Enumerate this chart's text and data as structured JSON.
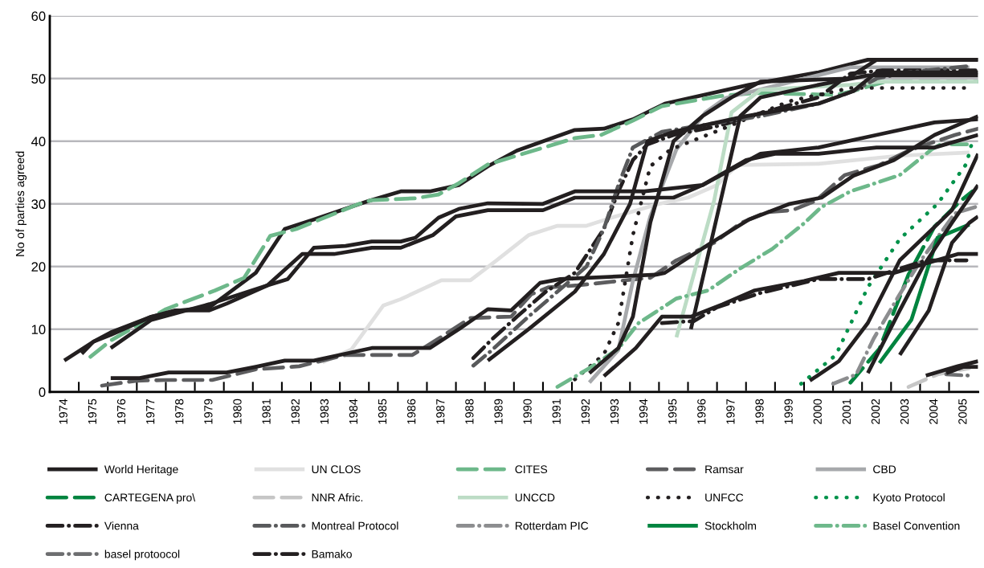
{
  "chart_data": {
    "type": "line",
    "ylabel": "No of parties agreed",
    "ylim": [
      0,
      60
    ],
    "yticks": [
      0,
      10,
      20,
      30,
      40,
      50,
      60
    ],
    "xlim": [
      1973.5,
      2005.5
    ],
    "xticks": [
      {
        "value": 1974,
        "label": "1974"
      },
      {
        "value": 1975,
        "label": "1975"
      },
      {
        "value": 1976,
        "label": "1976"
      },
      {
        "value": 1977,
        "label": "1977"
      },
      {
        "value": 1978,
        "label": "1978"
      },
      {
        "value": 1979,
        "label": "1979"
      },
      {
        "value": 1980,
        "label": "1980"
      },
      {
        "value": 1981,
        "label": "1981"
      },
      {
        "value": 1982,
        "label": "1982"
      },
      {
        "value": 1983,
        "label": "1983"
      },
      {
        "value": 1984,
        "label": "1984"
      },
      {
        "value": 1985,
        "label": "1985"
      },
      {
        "value": 1986,
        "label": "1986"
      },
      {
        "value": 1987,
        "label": "1987"
      },
      {
        "value": 1988,
        "label": "1988"
      },
      {
        "value": 1989,
        "label": "1989"
      },
      {
        "value": 1990,
        "label": "1990"
      },
      {
        "value": 1991,
        "label": "1991"
      },
      {
        "value": 1992,
        "label": "1992"
      },
      {
        "value": 1993,
        "label": "1993"
      },
      {
        "value": 1994,
        "label": "1994"
      },
      {
        "value": 1995,
        "label": "1995"
      },
      {
        "value": 1996,
        "label": "1996"
      },
      {
        "value": 1997,
        "label": "1997"
      },
      {
        "value": 1998,
        "label": "1998"
      },
      {
        "value": 1999,
        "label": "1999"
      },
      {
        "value": 2000,
        "label": "2000"
      },
      {
        "value": 2001,
        "label": "2001"
      },
      {
        "value": 2002,
        "label": "2002"
      },
      {
        "value": 2003,
        "label": "2003"
      },
      {
        "value": 2004,
        "label": "2004"
      },
      {
        "value": 2005,
        "label": "2005"
      },
      {
        "value": 1974.5,
        "label": null
      },
      {
        "value": 1975.5,
        "label": null
      },
      {
        "value": 1976.5,
        "label": null
      },
      {
        "value": 1977.5,
        "label": null
      },
      {
        "value": 1978.5,
        "label": null
      },
      {
        "value": 1979.5,
        "label": null
      },
      {
        "value": 1980.5,
        "label": null
      },
      {
        "value": 1981.5,
        "label": null
      },
      {
        "value": 1982.5,
        "label": null
      },
      {
        "value": 1983.5,
        "label": null
      },
      {
        "value": 1984.5,
        "label": null
      },
      {
        "value": 1985.5,
        "label": null
      },
      {
        "value": 1986.5,
        "label": null
      },
      {
        "value": 1987.5,
        "label": null
      },
      {
        "value": 1988.5,
        "label": null
      },
      {
        "value": 1989.5,
        "label": null
      },
      {
        "value": 1990.5,
        "label": null
      },
      {
        "value": 1991.5,
        "label": null
      },
      {
        "value": 1992.5,
        "label": null
      },
      {
        "value": 1993.5,
        "label": null
      },
      {
        "value": 1994.5,
        "label": null
      },
      {
        "value": 1995.5,
        "label": null
      },
      {
        "value": 1996.5,
        "label": null
      },
      {
        "value": 1997.5,
        "label": null
      },
      {
        "value": 1998.5,
        "label": null
      },
      {
        "value": 1999.5,
        "label": null
      },
      {
        "value": 2000.5,
        "label": null
      },
      {
        "value": 2001.5,
        "label": null
      },
      {
        "value": 2002.5,
        "label": null
      },
      {
        "value": 2003.5,
        "label": null
      },
      {
        "value": 2004.5,
        "label": null
      }
    ],
    "grid": "y",
    "legend": "bottom",
    "marker": "none",
    "series": [
      {
        "name": "World Heritage",
        "color": "#231f20",
        "line_style": "solid",
        "x": [
          1974,
          1975,
          1975.6,
          1977,
          1978,
          1979,
          1980.6,
          1981.6,
          1982.6,
          1984.5,
          1985.6,
          1986.6,
          1987.6,
          1988.6,
          1989.6,
          1991.6,
          1992.6,
          1993.6,
          1994.7,
          1997.6,
          2000,
          2001.7,
          2005.5
        ],
        "values": [
          5,
          8,
          9.5,
          12,
          13,
          13.5,
          19,
          26,
          27.5,
          30.5,
          32,
          32,
          33,
          36,
          38.5,
          41.8,
          42,
          43.5,
          46,
          49,
          51,
          53,
          53
        ]
      },
      {
        "name": "UN CLOS",
        "color": "#e0e0e0",
        "line_style": "solid",
        "x": [
          1982.9,
          1983.9,
          1985,
          1985.6,
          1987,
          1988,
          1988.9,
          1990,
          1991,
          1992,
          1993,
          1994.5,
          1995.5,
          1996.5,
          1997.2,
          2000,
          2002.8,
          2005.2
        ],
        "values": [
          4.7,
          6.8,
          13.8,
          14.8,
          17.8,
          17.8,
          21,
          25,
          26.5,
          26.5,
          28,
          30,
          31,
          33,
          36.2,
          36.4,
          37.7,
          38.2
        ]
      },
      {
        "name": "CITES",
        "color": "#6db88a",
        "line_style": "dashed",
        "x": [
          1974.9,
          1975.6,
          1977.5,
          1979.2,
          1980.2,
          1981.1,
          1982,
          1984.1,
          1984.6,
          1986.1,
          1986.9,
          1987.6,
          1988.6,
          1991.6,
          1992.5,
          1993.6,
          1994.6,
          1996.6,
          1997.8,
          2000.6,
          2001.1,
          2002.3,
          2005.5
        ],
        "values": [
          5.6,
          8.2,
          13.2,
          16.2,
          18.2,
          24.9,
          26,
          29.9,
          30.6,
          30.9,
          31.5,
          33.3,
          36.3,
          40.5,
          41,
          43.3,
          45.6,
          47.2,
          47.7,
          47.4,
          47.9,
          49.5,
          49.5
        ]
      },
      {
        "name": "Ramsar",
        "color": "#5d5d5f",
        "line_style": "dashed",
        "x": [
          1975.3,
          1976.5,
          1977.5,
          1979.1,
          1980.6,
          1982.1,
          1983.7,
          1986,
          1986.8,
          1988,
          1989.4,
          1990.1,
          1990.7,
          1991.7,
          1993.1,
          1994.2,
          1995.1,
          1996.4,
          1997.3,
          1998.2,
          1999.1,
          1999.9,
          2000.9,
          2002.1,
          2003.1,
          2004.7,
          2005.5
        ],
        "values": [
          1,
          1.8,
          1.9,
          1.9,
          3.6,
          4.1,
          5.9,
          5.9,
          8.2,
          11.8,
          12,
          15.6,
          16.7,
          17,
          17.7,
          18.2,
          21,
          23.8,
          26.9,
          28.7,
          29,
          30.5,
          34.6,
          36.2,
          38.5,
          41,
          42
        ]
      },
      {
        "name": "CBD",
        "color": "#a7a9ac",
        "line_style": "solid",
        "x": [
          1992.1,
          1993.1,
          1993.6,
          1994.2,
          1995.1,
          1996.1,
          1996.8,
          2001.1,
          2005.2
        ],
        "values": [
          1.5,
          6.7,
          17.7,
          28,
          38.7,
          44.6,
          46.9,
          51.8,
          51.8
        ]
      },
      {
        "name": "CARTEGENA pro\\",
        "color": "#00843f",
        "line_style": "dashed",
        "x": [
          2001.1,
          2002.1,
          2003.1,
          2004,
          2004.9,
          2005.3
        ],
        "values": [
          1.5,
          6.9,
          18.7,
          26.4,
          30.5,
          32
        ]
      },
      {
        "name": "NNR Afric.",
        "color": "#c6c6c6",
        "line_style": "dashed",
        "x": [
          2003.1,
          2004.1,
          2005.2
        ],
        "values": [
          0.8,
          2.8,
          3.8
        ]
      },
      {
        "name": "UNCCD",
        "color": "#bcdcc5",
        "line_style": "solid",
        "x": [
          1995.1,
          1996.4,
          1997,
          1998,
          2001.1,
          2002.1,
          2005.5
        ],
        "values": [
          8.7,
          30.5,
          44.6,
          48.2,
          49,
          49.5,
          49.5
        ]
      },
      {
        "name": "UNFCC",
        "color": "#231f20",
        "line_style": "dotted",
        "x": [
          1991.6,
          1992.6,
          1993.1,
          1993.6,
          1994.2,
          1994.9,
          1996.6,
          1999,
          2001.1,
          2005.2
        ],
        "values": [
          2,
          6,
          11,
          25,
          36,
          38.7,
          41.8,
          46.4,
          48.5,
          48.5
        ]
      },
      {
        "name": "Kyoto Protocol",
        "color": "#00924a",
        "line_style": "dotted",
        "x": [
          1999.4,
          2000.6,
          2001.7,
          2002.8,
          2004.1,
          2005.1,
          2005.3
        ],
        "values": [
          1.3,
          5.9,
          16.7,
          24.4,
          30,
          36.4,
          40
        ]
      },
      {
        "name": "Vienna",
        "color": "#231f20",
        "line_style": "dashdot",
        "x": [
          1988.1,
          1988.7,
          1989.6,
          1990.6,
          1991.6,
          1992.6,
          1993.1,
          1993.6,
          1994.1,
          1995,
          1996.6,
          1998,
          2000,
          2001.1,
          2002.2,
          2005.5
        ],
        "values": [
          5.4,
          8.2,
          12,
          16,
          19,
          26,
          32,
          37,
          39.5,
          41,
          42.5,
          44.5,
          47,
          50.8,
          51.3,
          51.3
        ]
      },
      {
        "name": "Montreal Protocol",
        "color": "#58595b",
        "line_style": "dashdot",
        "x": [
          1988.1,
          1988.7,
          1990,
          1991,
          1992,
          1992.6,
          1993.1,
          1993.6,
          1994.6,
          1996.6,
          1998,
          2000,
          2001.2,
          2002,
          2003.1,
          2005.2
        ],
        "values": [
          4.2,
          6.5,
          12,
          16,
          20,
          26,
          33,
          39,
          41.5,
          43,
          44,
          46,
          48,
          50,
          51,
          52
        ]
      },
      {
        "name": "Rotterdam PIC",
        "color": "#8c8d8f",
        "line_style": "dashdot",
        "x": [
          2000.5,
          2001.3,
          2001.9,
          2002.8,
          2003.5,
          2004.7,
          2005.4
        ],
        "values": [
          1.3,
          2.8,
          8.5,
          15.6,
          20.8,
          28.5,
          29.5
        ]
      },
      {
        "name": "Stockholm",
        "color": "#00843f",
        "line_style": "solid",
        "x": [
          2002.1,
          2003.2,
          2004.1,
          2005.2
        ],
        "values": [
          4.6,
          11.5,
          24.6,
          26.7
        ]
      },
      {
        "name": "Basel Convention",
        "color": "#6db88a",
        "line_style": "dashdot",
        "x": [
          1991,
          1992.1,
          1993.1,
          1993.8,
          1995.1,
          1996.2,
          1997.3,
          1998.4,
          1999.5,
          2000.1,
          2001.1,
          2002.8,
          2003.9,
          2004.2,
          2005.2
        ],
        "values": [
          0.8,
          3.8,
          6.9,
          11,
          14.9,
          16.2,
          19.7,
          22.8,
          26.9,
          29.5,
          32,
          34.6,
          38.7,
          39.5,
          39.5
        ]
      },
      {
        "name": "basel protoocol",
        "color": "#6d6e70",
        "line_style": "dashdot",
        "x": [
          2004.4,
          2005.2
        ],
        "values": [
          2.8,
          2.6
        ]
      },
      {
        "name": "Bamako",
        "color": "#231f20",
        "line_style": "dashdot",
        "x": [
          1994.6,
          1995.7,
          1996.5,
          1998,
          2000,
          2001.7,
          2002.7,
          2003.7,
          2005.1
        ],
        "values": [
          11,
          11.3,
          13.5,
          15.8,
          18,
          18,
          19.5,
          21,
          21
        ]
      },
      {
        "color": "#231f20",
        "line_style": "solid",
        "x": [
          1974.6,
          1975,
          1975.6,
          1977,
          1977.8,
          1979,
          1979.6,
          1981,
          1981.7,
          1982.6,
          1983.7,
          1984.6,
          1985.6,
          1986.1,
          1986.9,
          1987.6,
          1988.6,
          1990.5,
          1991.6,
          1994,
          1996,
          1998,
          2000,
          2002,
          2004,
          2005.5
        ],
        "values": [
          6.1,
          8,
          9.1,
          12,
          13,
          13,
          14.1,
          17,
          18,
          23,
          23.3,
          24,
          24,
          24.6,
          27.8,
          29.2,
          30.1,
          30,
          32,
          32,
          33,
          38,
          39,
          41,
          43,
          43.5
        ]
      },
      {
        "color": "#231f20",
        "line_style": "solid",
        "x": [
          1975.6,
          1977,
          1979,
          1981,
          1982.2,
          1983.3,
          1984.6,
          1985.6,
          1986.7,
          1987.5,
          1988.6,
          1990.5,
          1991.6,
          1995,
          1996,
          1997.5,
          1998.5,
          2000,
          2002,
          2004,
          2005.5
        ],
        "values": [
          7,
          11.5,
          14,
          17,
          22,
          22,
          23,
          23,
          25,
          28,
          29,
          29,
          31,
          31,
          33,
          37,
          38,
          38,
          39,
          39,
          41
        ]
      },
      {
        "color": "#231f20",
        "line_style": "solid",
        "x": [
          1975.6,
          1976.6,
          1977.6,
          1979.6,
          1980.6,
          1981.6,
          1982.6,
          1983.6,
          1984.6,
          1986.6,
          1987.6,
          1988.6,
          1989.4,
          1990.4,
          1991.1,
          1994.4,
          1994.7,
          1996.2,
          1997.6,
          1999,
          2000.1,
          2001.2,
          2002.6,
          2004,
          2005.5
        ],
        "values": [
          2.2,
          2.2,
          3.1,
          3.1,
          4,
          5,
          5,
          6,
          7,
          7,
          10,
          13.2,
          13,
          17.4,
          18,
          18.7,
          19,
          23.5,
          27.5,
          30,
          31,
          34.5,
          37,
          41,
          44
        ]
      },
      {
        "color": "#231f20",
        "line_style": "solid",
        "x": [
          1988.6,
          1990,
          1991.6,
          1992.6,
          1993.5,
          1994.1,
          1995,
          1997.5,
          2000,
          2001.2,
          2002,
          2005.5
        ],
        "values": [
          5,
          10,
          16,
          22,
          30,
          40,
          41.5,
          44,
          46,
          48,
          51,
          51
        ]
      },
      {
        "color": "#231f20",
        "line_style": "solid",
        "x": [
          1992.1,
          1993.1,
          1993.6,
          1994.2,
          1995,
          1996,
          1997,
          1998,
          2001,
          2002,
          2005.5
        ],
        "values": [
          3,
          7,
          12,
          27,
          40,
          44,
          47,
          49.5,
          50,
          53,
          53
        ]
      },
      {
        "color": "#231f20",
        "line_style": "solid",
        "x": [
          1995.6,
          1996.6,
          1997.3,
          1998,
          2000,
          2001.7,
          2005.5
        ],
        "values": [
          10,
          30,
          44,
          47,
          49,
          50.5,
          50.5
        ]
      },
      {
        "color": "#231f20",
        "line_style": "solid",
        "x": [
          1992.6,
          1993.7,
          1994.6,
          1995.6,
          1996.7,
          1997.8,
          1999.5,
          2000.7,
          2002.6,
          2004.8,
          2005.5
        ],
        "values": [
          2.5,
          7,
          12,
          12,
          14,
          16.2,
          17.7,
          19,
          19,
          22,
          22
        ]
      },
      {
        "color": "#231f20",
        "line_style": "solid",
        "x": [
          1999.7,
          2000.7,
          2001.7,
          2002.8,
          2004.6,
          2005.5
        ],
        "values": [
          1.8,
          4.9,
          11,
          21,
          29,
          38
        ]
      },
      {
        "color": "#231f20",
        "line_style": "solid",
        "x": [
          2001.7,
          2002.8,
          2003.6,
          2004.6,
          2005.5
        ],
        "values": [
          3,
          13,
          20,
          27,
          33
        ]
      },
      {
        "color": "#231f20",
        "line_style": "solid",
        "x": [
          2002.8,
          2003.8,
          2004.6,
          2005.2,
          2005.5
        ],
        "values": [
          5.9,
          13,
          23.8,
          27,
          28
        ]
      },
      {
        "color": "#231f20",
        "line_style": "solid",
        "x": [
          2003.7,
          2004.8,
          2005.5
        ],
        "values": [
          2.6,
          4.1,
          4.9
        ]
      },
      {
        "color": "#231f20",
        "line_style": "solid",
        "x": [
          2004.4,
          2005,
          2005.5
        ],
        "values": [
          3,
          4,
          4
        ]
      }
    ]
  }
}
